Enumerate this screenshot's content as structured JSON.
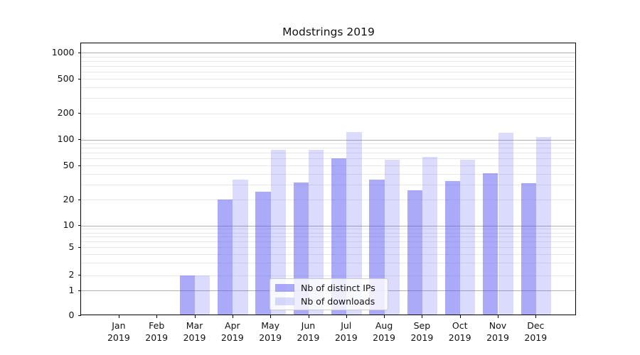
{
  "figure": {
    "title": "Modstrings 2019"
  },
  "chart_data": {
    "type": "bar",
    "title": "Modstrings 2019",
    "categories": [
      "Jan 2019",
      "Feb 2019",
      "Mar 2019",
      "Apr 2019",
      "May 2019",
      "Jun 2019",
      "Jul 2019",
      "Aug 2019",
      "Sep 2019",
      "Oct 2019",
      "Nov 2019",
      "Dec 2019"
    ],
    "series": [
      {
        "name": "Nb of distinct IPs",
        "color": "rgba(87,85,244,0.50)",
        "values": [
          0,
          0,
          2,
          20,
          25,
          32,
          60,
          34,
          26,
          33,
          41,
          31
        ]
      },
      {
        "name": "Nb of downloads",
        "color": "rgba(87,85,244,0.21)",
        "values": [
          0,
          0,
          2,
          34,
          76,
          76,
          123,
          58,
          63,
          58,
          120,
          107
        ]
      }
    ],
    "ylabel": "",
    "xlabel": "",
    "yscale": "symlog",
    "ytick_labels": [
      0,
      1,
      2,
      5,
      10,
      20,
      50,
      100,
      200,
      500,
      1000
    ],
    "ylim": [
      0,
      1300
    ],
    "grid": "both",
    "legend_position": "lower center"
  },
  "colors": {
    "bar_dark_on_white": "#abaaf8",
    "bar_light_on_white": "#dcdbf9",
    "grid_major": "#b0b0b0",
    "grid_minor": "#e8e8e8",
    "axis": "#000000"
  }
}
